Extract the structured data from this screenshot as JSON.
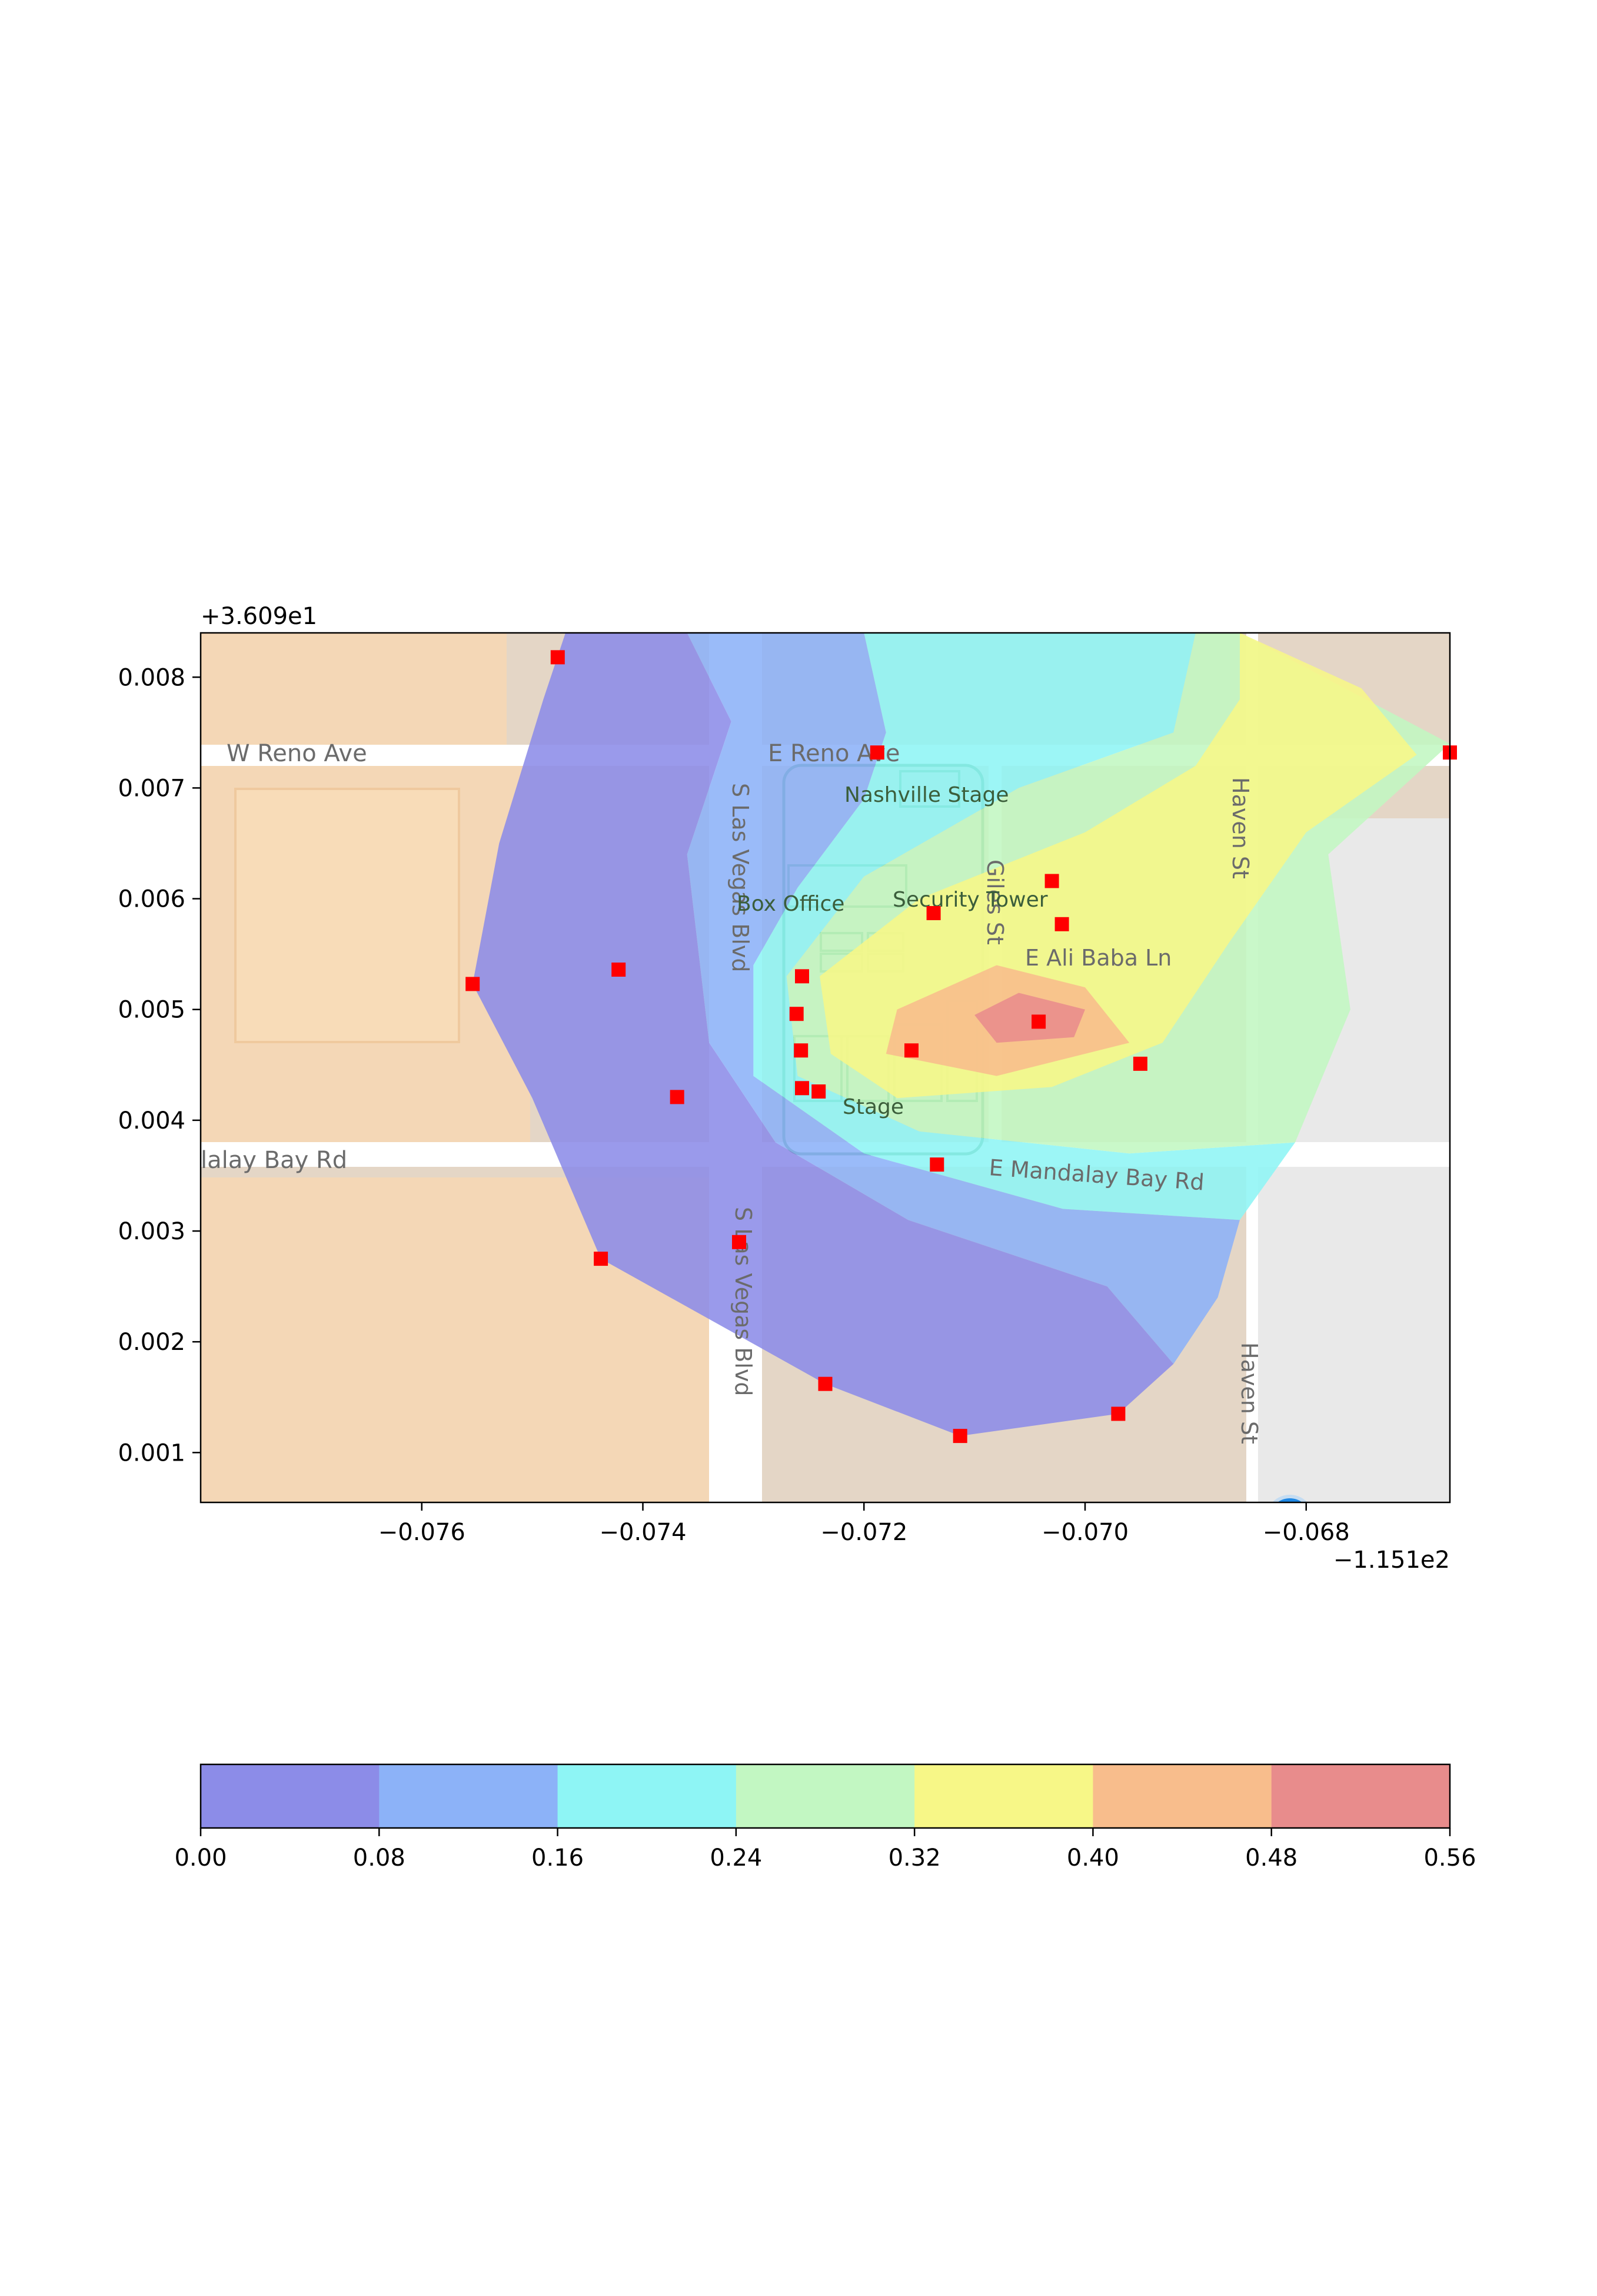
{
  "map": {
    "x_offset_label": "−1.151e2",
    "y_offset_label": "+3.609e1",
    "xlim": [
      -0.078,
      -0.0667
    ],
    "ylim": [
      0.00055,
      0.0084
    ],
    "x_ticks": [
      {
        "value": -0.076,
        "label": "−0.076"
      },
      {
        "value": -0.074,
        "label": "−0.074"
      },
      {
        "value": -0.072,
        "label": "−0.072"
      },
      {
        "value": -0.07,
        "label": "−0.070"
      },
      {
        "value": -0.068,
        "label": "−0.068"
      }
    ],
    "y_ticks": [
      {
        "value": 0.008,
        "label": "0.008"
      },
      {
        "value": 0.007,
        "label": "0.007"
      },
      {
        "value": 0.006,
        "label": "0.006"
      },
      {
        "value": 0.005,
        "label": "0.005"
      },
      {
        "value": 0.004,
        "label": "0.004"
      },
      {
        "value": 0.003,
        "label": "0.003"
      },
      {
        "value": 0.002,
        "label": "0.002"
      },
      {
        "value": 0.001,
        "label": "0.001"
      }
    ],
    "labels": {
      "w_reno": "W Reno Ave",
      "e_reno": "E Reno Ave",
      "mandalay_w": "lalay Bay Rd",
      "mandalay_e": "E Mandalay Bay Rd",
      "las_vegas_n": "S Las Vegas Blvd",
      "las_vegas_s": "S Las Vegas Blvd",
      "haven_n": "Haven St",
      "haven_s": "Haven St",
      "giles": "Giles St",
      "ali_baba": "E Ali Baba Ln",
      "nashville": "Nashville Stage",
      "box_office": "Box Office",
      "security": "Security Tower",
      "stage": "Stage"
    },
    "colors": {
      "casino": "#f4d7b6",
      "land": "#e4d6c6",
      "road": "#ffffff",
      "gray_block": "#e9e9e9",
      "marker": "#ff0000"
    },
    "marker_style": "red square",
    "sensor_points": [
      {
        "x": -0.07477,
        "y": 0.00818
      },
      {
        "x": -0.07188,
        "y": 0.00732
      },
      {
        "x": -0.0667,
        "y": 0.00732
      },
      {
        "x": -0.07137,
        "y": 0.00587
      },
      {
        "x": -0.0703,
        "y": 0.00616
      },
      {
        "x": -0.07021,
        "y": 0.00577
      },
      {
        "x": -0.07554,
        "y": 0.00523
      },
      {
        "x": -0.07422,
        "y": 0.00536
      },
      {
        "x": -0.07256,
        "y": 0.0053
      },
      {
        "x": -0.07261,
        "y": 0.00496
      },
      {
        "x": -0.07257,
        "y": 0.00463
      },
      {
        "x": -0.07157,
        "y": 0.00463
      },
      {
        "x": -0.07042,
        "y": 0.00489
      },
      {
        "x": -0.0695,
        "y": 0.00451
      },
      {
        "x": -0.07256,
        "y": 0.00429
      },
      {
        "x": -0.07241,
        "y": 0.00426
      },
      {
        "x": -0.07369,
        "y": 0.00421
      },
      {
        "x": -0.07134,
        "y": 0.0036
      },
      {
        "x": -0.07438,
        "y": 0.00275
      },
      {
        "x": -0.07313,
        "y": 0.0029
      },
      {
        "x": -0.07235,
        "y": 0.00162
      },
      {
        "x": -0.07113,
        "y": 0.00115
      },
      {
        "x": -0.0697,
        "y": 0.00135
      }
    ],
    "contour_bands": [
      {
        "level": "0.00–0.08",
        "color": "#8c8ce8",
        "polygon": [
          [
            -0.0747,
            0.0084
          ],
          [
            -0.0736,
            0.0084
          ],
          [
            -0.0732,
            0.0076
          ],
          [
            -0.0736,
            0.0064
          ],
          [
            -0.0734,
            0.0047
          ],
          [
            -0.0728,
            0.0038
          ],
          [
            -0.0716,
            0.0031
          ],
          [
            -0.0698,
            0.0025
          ],
          [
            -0.0692,
            0.0018
          ],
          [
            -0.0697,
            0.00135
          ],
          [
            -0.07113,
            0.00115
          ],
          [
            -0.07235,
            0.00162
          ],
          [
            -0.07438,
            0.00275
          ],
          [
            -0.075,
            0.0042
          ],
          [
            -0.07554,
            0.00523
          ],
          [
            -0.0753,
            0.0065
          ],
          [
            -0.0749,
            0.0078
          ]
        ]
      },
      {
        "level": "0.08–0.16",
        "color": "#8cb2f8",
        "polygon": [
          [
            -0.0736,
            0.0084
          ],
          [
            -0.072,
            0.0084
          ],
          [
            -0.0718,
            0.0075
          ],
          [
            -0.072,
            0.0069
          ],
          [
            -0.0726,
            0.0061
          ],
          [
            -0.073,
            0.0054
          ],
          [
            -0.073,
            0.0044
          ],
          [
            -0.072,
            0.0037
          ],
          [
            -0.0702,
            0.0032
          ],
          [
            -0.0686,
            0.0031
          ],
          [
            -0.0688,
            0.0024
          ],
          [
            -0.0692,
            0.0018
          ],
          [
            -0.0698,
            0.0025
          ],
          [
            -0.0716,
            0.0031
          ],
          [
            -0.0728,
            0.0038
          ],
          [
            -0.0734,
            0.0047
          ],
          [
            -0.0736,
            0.0064
          ],
          [
            -0.0732,
            0.0076
          ]
        ]
      },
      {
        "level": "0.16–0.24",
        "color": "#8ef5f5",
        "polygon": [
          [
            -0.072,
            0.0084
          ],
          [
            -0.069,
            0.0084
          ],
          [
            -0.0692,
            0.0075
          ],
          [
            -0.0706,
            0.007
          ],
          [
            -0.072,
            0.0062
          ],
          [
            -0.0727,
            0.0053
          ],
          [
            -0.0726,
            0.0044
          ],
          [
            -0.0715,
            0.0039
          ],
          [
            -0.0696,
            0.0037
          ],
          [
            -0.0681,
            0.0038
          ],
          [
            -0.0686,
            0.0031
          ],
          [
            -0.0702,
            0.0032
          ],
          [
            -0.072,
            0.0037
          ],
          [
            -0.073,
            0.0044
          ],
          [
            -0.073,
            0.0054
          ],
          [
            -0.0726,
            0.0061
          ],
          [
            -0.072,
            0.0069
          ],
          [
            -0.0718,
            0.0075
          ]
        ]
      },
      {
        "level": "0.24–0.32",
        "color": "#c2f7c2",
        "polygon": [
          [
            -0.069,
            0.0084
          ],
          [
            -0.0686,
            0.0084
          ],
          [
            -0.0667,
            0.0074
          ],
          [
            -0.0678,
            0.0064
          ],
          [
            -0.0676,
            0.005
          ],
          [
            -0.0681,
            0.0038
          ],
          [
            -0.0696,
            0.0037
          ],
          [
            -0.0715,
            0.0039
          ],
          [
            -0.0726,
            0.0044
          ],
          [
            -0.0727,
            0.0053
          ],
          [
            -0.072,
            0.0062
          ],
          [
            -0.0706,
            0.007
          ],
          [
            -0.0692,
            0.0075
          ]
        ]
      },
      {
        "level": "0.32–0.40",
        "color": "#f7f787",
        "polygon": [
          [
            -0.0686,
            0.0084
          ],
          [
            -0.0675,
            0.0079
          ],
          [
            -0.067,
            0.0073
          ],
          [
            -0.068,
            0.0066
          ],
          [
            -0.0687,
            0.0056
          ],
          [
            -0.0693,
            0.0047
          ],
          [
            -0.0703,
            0.0043
          ],
          [
            -0.0717,
            0.0042
          ],
          [
            -0.0723,
            0.0046
          ],
          [
            -0.0724,
            0.0053
          ],
          [
            -0.0715,
            0.006
          ],
          [
            -0.07,
            0.0066
          ],
          [
            -0.069,
            0.0072
          ],
          [
            -0.0686,
            0.0078
          ]
        ]
      },
      {
        "level": "0.40–0.48",
        "color": "#f8bd8c",
        "polygon": [
          [
            -0.0708,
            0.0054
          ],
          [
            -0.07,
            0.0052
          ],
          [
            -0.0696,
            0.0047
          ],
          [
            -0.0708,
            0.0044
          ],
          [
            -0.0718,
            0.0046
          ],
          [
            -0.0717,
            0.005
          ]
        ]
      },
      {
        "level": "0.48–0.56",
        "color": "#e88c8c",
        "polygon": [
          [
            -0.0706,
            0.00515
          ],
          [
            -0.07,
            0.005
          ],
          [
            -0.0701,
            0.00475
          ],
          [
            -0.0708,
            0.0047
          ],
          [
            -0.071,
            0.00495
          ]
        ]
      }
    ]
  },
  "colorbar": {
    "levels": [
      {
        "label": "0.00",
        "color": "#8c8ce8"
      },
      {
        "label": "0.08",
        "color": "#8cb2f8"
      },
      {
        "label": "0.16",
        "color": "#8ef5f5"
      },
      {
        "label": "0.24",
        "color": "#c2f7c2"
      },
      {
        "label": "0.32",
        "color": "#f7f787"
      },
      {
        "label": "0.40",
        "color": "#f8bd8c"
      },
      {
        "label": "0.48",
        "color": "#e88c8c"
      },
      {
        "label": "0.56",
        "color": ""
      }
    ]
  }
}
